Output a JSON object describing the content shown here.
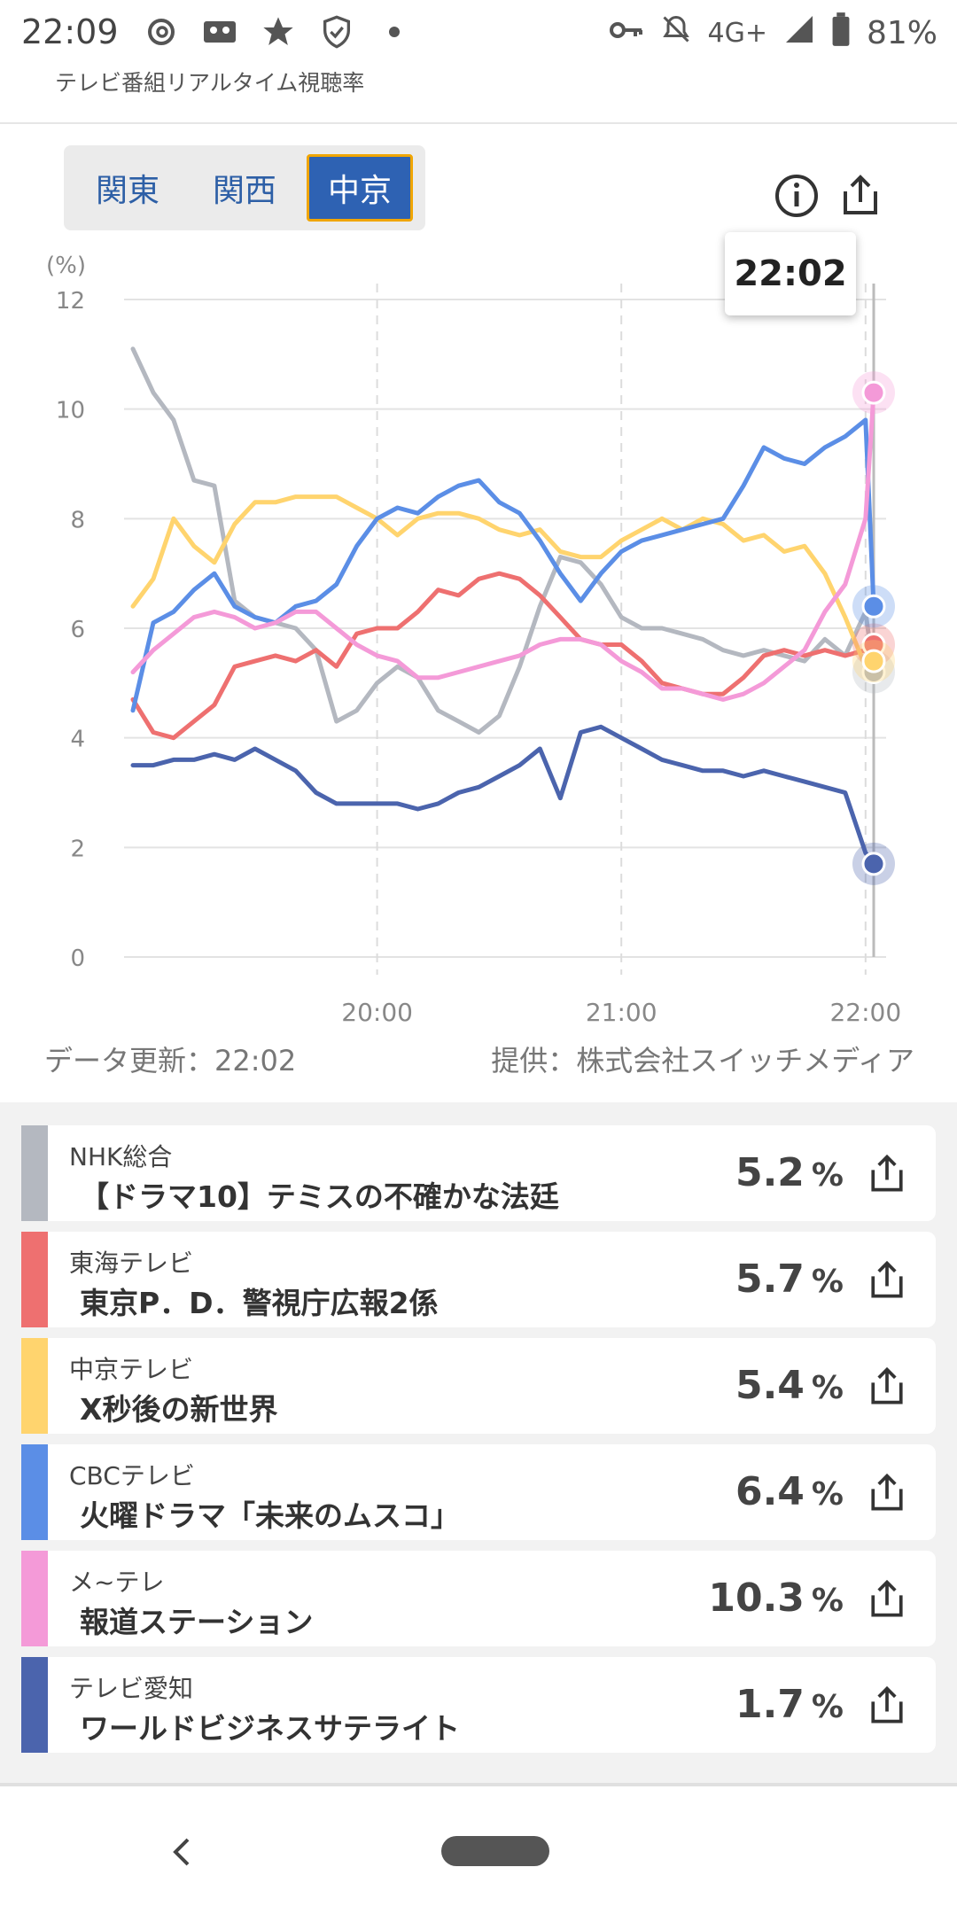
{
  "status_bar": {
    "time": "22:09",
    "battery": "81%",
    "network": "4G+",
    "icons": [
      "threads-icon",
      "cassette-icon",
      "star-icon",
      "shield-icon",
      "dot-icon",
      "key-icon",
      "bell-off-icon",
      "signal-icon",
      "battery-icon"
    ]
  },
  "app": {
    "subtitle": "テレビ番組リアルタイム視聴率"
  },
  "region_tabs": [
    {
      "label": "関東",
      "active": false
    },
    {
      "label": "関西",
      "active": false
    },
    {
      "label": "中京",
      "active": true
    }
  ],
  "tooltip_time": "22:02",
  "chart_data": {
    "type": "line",
    "ylabel": "(%)",
    "ylim": [
      0,
      12
    ],
    "yticks": [
      "0",
      "2",
      "4",
      "6",
      "8",
      "10",
      "12"
    ],
    "xticks": [
      "20:00",
      "21:00",
      "22:00"
    ],
    "x_range": [
      "19:00",
      "22:02"
    ],
    "grid": true,
    "series": [
      {
        "name": "NHK総合",
        "color": "#b4b8c0",
        "endpoint": 5.2,
        "points": [
          [
            0,
            11.1
          ],
          [
            5,
            10.3
          ],
          [
            10,
            9.8
          ],
          [
            15,
            8.7
          ],
          [
            20,
            8.6
          ],
          [
            25,
            6.5
          ],
          [
            30,
            6.2
          ],
          [
            35,
            6.1
          ],
          [
            40,
            6.0
          ],
          [
            45,
            5.6
          ],
          [
            50,
            4.3
          ],
          [
            55,
            4.5
          ],
          [
            60,
            5.0
          ],
          [
            65,
            5.3
          ],
          [
            70,
            5.1
          ],
          [
            75,
            4.5
          ],
          [
            80,
            4.3
          ],
          [
            85,
            4.1
          ],
          [
            90,
            4.4
          ],
          [
            95,
            5.3
          ],
          [
            100,
            6.4
          ],
          [
            105,
            7.3
          ],
          [
            110,
            7.2
          ],
          [
            115,
            6.8
          ],
          [
            120,
            6.2
          ],
          [
            125,
            6.0
          ],
          [
            130,
            6.0
          ],
          [
            135,
            5.9
          ],
          [
            140,
            5.8
          ],
          [
            145,
            5.6
          ],
          [
            150,
            5.5
          ],
          [
            155,
            5.6
          ],
          [
            160,
            5.5
          ],
          [
            165,
            5.4
          ],
          [
            170,
            5.8
          ],
          [
            175,
            5.5
          ],
          [
            180,
            6.3
          ],
          [
            182,
            5.2
          ]
        ]
      },
      {
        "name": "東海テレビ",
        "color": "#ee7070",
        "endpoint": 5.7,
        "points": [
          [
            0,
            4.7
          ],
          [
            5,
            4.1
          ],
          [
            10,
            4.0
          ],
          [
            15,
            4.3
          ],
          [
            20,
            4.6
          ],
          [
            25,
            5.3
          ],
          [
            30,
            5.4
          ],
          [
            35,
            5.5
          ],
          [
            40,
            5.4
          ],
          [
            45,
            5.6
          ],
          [
            50,
            5.3
          ],
          [
            55,
            5.9
          ],
          [
            60,
            6.0
          ],
          [
            65,
            6.0
          ],
          [
            70,
            6.3
          ],
          [
            75,
            6.7
          ],
          [
            80,
            6.6
          ],
          [
            85,
            6.9
          ],
          [
            90,
            7.0
          ],
          [
            95,
            6.9
          ],
          [
            100,
            6.6
          ],
          [
            105,
            6.2
          ],
          [
            110,
            5.8
          ],
          [
            115,
            5.7
          ],
          [
            120,
            5.7
          ],
          [
            125,
            5.4
          ],
          [
            130,
            5.0
          ],
          [
            135,
            4.9
          ],
          [
            140,
            4.8
          ],
          [
            145,
            4.8
          ],
          [
            150,
            5.1
          ],
          [
            155,
            5.5
          ],
          [
            160,
            5.6
          ],
          [
            165,
            5.5
          ],
          [
            170,
            5.6
          ],
          [
            175,
            5.5
          ],
          [
            180,
            5.6
          ],
          [
            182,
            5.7
          ]
        ]
      },
      {
        "name": "中京テレビ",
        "color": "#ffd46e",
        "endpoint": 5.4,
        "points": [
          [
            0,
            6.4
          ],
          [
            5,
            6.9
          ],
          [
            10,
            8.0
          ],
          [
            15,
            7.5
          ],
          [
            20,
            7.2
          ],
          [
            25,
            7.9
          ],
          [
            30,
            8.3
          ],
          [
            35,
            8.3
          ],
          [
            40,
            8.4
          ],
          [
            45,
            8.4
          ],
          [
            50,
            8.4
          ],
          [
            55,
            8.2
          ],
          [
            60,
            8.0
          ],
          [
            65,
            7.7
          ],
          [
            70,
            8.0
          ],
          [
            75,
            8.1
          ],
          [
            80,
            8.1
          ],
          [
            85,
            8.0
          ],
          [
            90,
            7.8
          ],
          [
            95,
            7.7
          ],
          [
            100,
            7.8
          ],
          [
            105,
            7.4
          ],
          [
            110,
            7.3
          ],
          [
            115,
            7.3
          ],
          [
            120,
            7.6
          ],
          [
            125,
            7.8
          ],
          [
            130,
            8.0
          ],
          [
            135,
            7.8
          ],
          [
            140,
            8.0
          ],
          [
            145,
            7.9
          ],
          [
            150,
            7.6
          ],
          [
            155,
            7.7
          ],
          [
            160,
            7.4
          ],
          [
            165,
            7.5
          ],
          [
            170,
            7.0
          ],
          [
            175,
            6.2
          ],
          [
            180,
            5.3
          ],
          [
            182,
            5.4
          ]
        ]
      },
      {
        "name": "CBCテレビ",
        "color": "#5b8ee6",
        "endpoint": 6.4,
        "points": [
          [
            0,
            4.5
          ],
          [
            5,
            6.1
          ],
          [
            10,
            6.3
          ],
          [
            15,
            6.7
          ],
          [
            20,
            7.0
          ],
          [
            25,
            6.4
          ],
          [
            30,
            6.2
          ],
          [
            35,
            6.1
          ],
          [
            40,
            6.4
          ],
          [
            45,
            6.5
          ],
          [
            50,
            6.8
          ],
          [
            55,
            7.5
          ],
          [
            60,
            8.0
          ],
          [
            65,
            8.2
          ],
          [
            70,
            8.1
          ],
          [
            75,
            8.4
          ],
          [
            80,
            8.6
          ],
          [
            85,
            8.7
          ],
          [
            90,
            8.3
          ],
          [
            95,
            8.1
          ],
          [
            100,
            7.6
          ],
          [
            105,
            7.0
          ],
          [
            110,
            6.5
          ],
          [
            115,
            7.0
          ],
          [
            120,
            7.4
          ],
          [
            125,
            7.6
          ],
          [
            130,
            7.7
          ],
          [
            135,
            7.8
          ],
          [
            140,
            7.9
          ],
          [
            145,
            8.0
          ],
          [
            150,
            8.6
          ],
          [
            155,
            9.3
          ],
          [
            160,
            9.1
          ],
          [
            165,
            9.0
          ],
          [
            170,
            9.3
          ],
          [
            175,
            9.5
          ],
          [
            180,
            9.8
          ],
          [
            182,
            6.4
          ]
        ]
      },
      {
        "name": "メ~テレ",
        "color": "#f49ad8",
        "endpoint": 10.3,
        "points": [
          [
            0,
            5.2
          ],
          [
            5,
            5.6
          ],
          [
            10,
            5.9
          ],
          [
            15,
            6.2
          ],
          [
            20,
            6.3
          ],
          [
            25,
            6.2
          ],
          [
            30,
            6.0
          ],
          [
            35,
            6.1
          ],
          [
            40,
            6.3
          ],
          [
            45,
            6.3
          ],
          [
            50,
            6.0
          ],
          [
            55,
            5.7
          ],
          [
            60,
            5.5
          ],
          [
            65,
            5.4
          ],
          [
            70,
            5.1
          ],
          [
            75,
            5.1
          ],
          [
            80,
            5.2
          ],
          [
            85,
            5.3
          ],
          [
            90,
            5.4
          ],
          [
            95,
            5.5
          ],
          [
            100,
            5.7
          ],
          [
            105,
            5.8
          ],
          [
            110,
            5.8
          ],
          [
            115,
            5.7
          ],
          [
            120,
            5.4
          ],
          [
            125,
            5.2
          ],
          [
            130,
            4.9
          ],
          [
            135,
            4.9
          ],
          [
            140,
            4.8
          ],
          [
            145,
            4.7
          ],
          [
            150,
            4.8
          ],
          [
            155,
            5.0
          ],
          [
            160,
            5.3
          ],
          [
            165,
            5.6
          ],
          [
            170,
            6.3
          ],
          [
            175,
            6.8
          ],
          [
            180,
            8.0
          ],
          [
            182,
            10.3
          ]
        ]
      },
      {
        "name": "テレビ愛知",
        "color": "#4b64ad",
        "endpoint": 1.7,
        "points": [
          [
            0,
            3.5
          ],
          [
            5,
            3.5
          ],
          [
            10,
            3.6
          ],
          [
            15,
            3.6
          ],
          [
            20,
            3.7
          ],
          [
            25,
            3.6
          ],
          [
            30,
            3.8
          ],
          [
            35,
            3.6
          ],
          [
            40,
            3.4
          ],
          [
            45,
            3.0
          ],
          [
            50,
            2.8
          ],
          [
            55,
            2.8
          ],
          [
            60,
            2.8
          ],
          [
            65,
            2.8
          ],
          [
            70,
            2.7
          ],
          [
            75,
            2.8
          ],
          [
            80,
            3.0
          ],
          [
            85,
            3.1
          ],
          [
            90,
            3.3
          ],
          [
            95,
            3.5
          ],
          [
            100,
            3.8
          ],
          [
            105,
            2.9
          ],
          [
            110,
            4.1
          ],
          [
            115,
            4.2
          ],
          [
            120,
            4.0
          ],
          [
            125,
            3.8
          ],
          [
            130,
            3.6
          ],
          [
            135,
            3.5
          ],
          [
            140,
            3.4
          ],
          [
            145,
            3.4
          ],
          [
            150,
            3.3
          ],
          [
            155,
            3.4
          ],
          [
            160,
            3.3
          ],
          [
            165,
            3.2
          ],
          [
            170,
            3.1
          ],
          [
            175,
            3.0
          ],
          [
            180,
            1.9
          ],
          [
            182,
            1.7
          ]
        ]
      }
    ]
  },
  "footer": {
    "updated": "データ更新：22:02",
    "provider": "提供：株式会社スイッチメディア"
  },
  "programs": [
    {
      "station": "NHK総合",
      "program": "【ドラマ10】テミスの不確かな法廷",
      "rating": "5.2",
      "unit": "%",
      "color": "#b4b8c0"
    },
    {
      "station": "東海テレビ",
      "program": "東京P．D．警視庁広報2係",
      "rating": "5.7",
      "unit": "%",
      "color": "#ee7070"
    },
    {
      "station": "中京テレビ",
      "program": "X秒後の新世界",
      "rating": "5.4",
      "unit": "%",
      "color": "#ffd46e"
    },
    {
      "station": "CBCテレビ",
      "program": "火曜ドラマ「未来のムスコ」",
      "rating": "6.4",
      "unit": "%",
      "color": "#5b8ee6"
    },
    {
      "station": "メ~テレ",
      "program": "報道ステーション",
      "rating": "10.3",
      "unit": "%",
      "color": "#f49ad8"
    },
    {
      "station": "テレビ愛知",
      "program": "ワールドビジネスサテライト",
      "rating": "1.7",
      "unit": "%",
      "color": "#4b64ad"
    }
  ],
  "nav": {
    "back_icon": "back-chevron-icon",
    "home_icon": "home-pill-icon"
  }
}
